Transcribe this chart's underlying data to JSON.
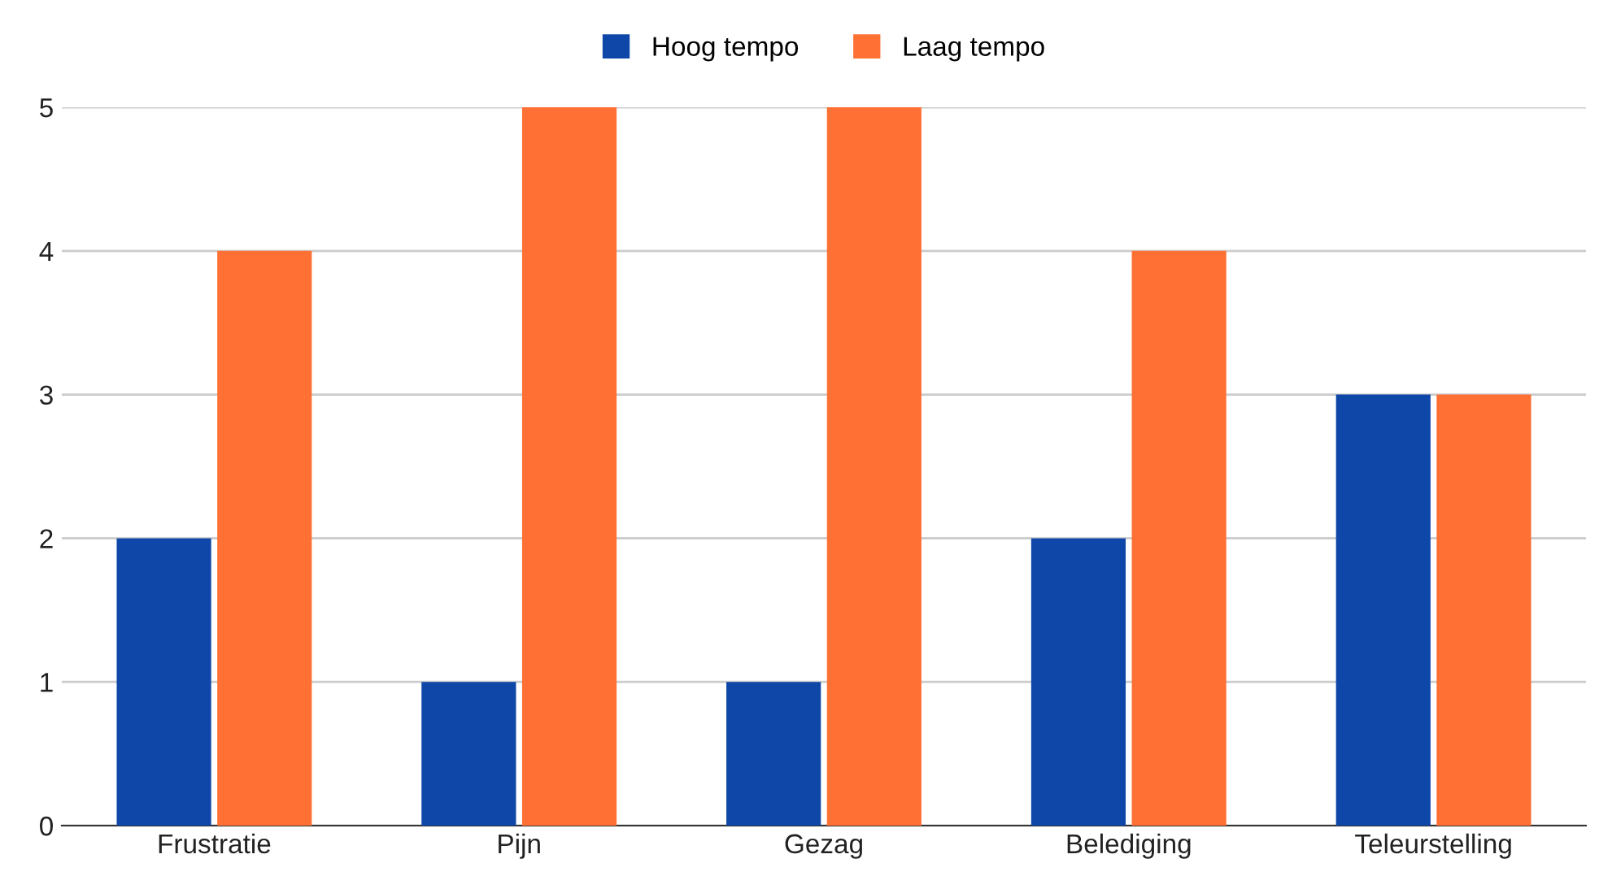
{
  "chart_data": {
    "type": "bar",
    "categories": [
      "Frustratie",
      "Pijn",
      "Gezag",
      "Belediging",
      "Teleurstelling"
    ],
    "series": [
      {
        "name": "Hoog tempo",
        "color": "#0e47a8",
        "values": [
          2,
          1,
          1,
          2,
          3
        ]
      },
      {
        "name": "Laag tempo",
        "color": "#ff7034",
        "values": [
          4,
          5,
          5,
          4,
          3
        ]
      }
    ],
    "ylim": [
      0,
      5
    ],
    "yticks": [
      0,
      1,
      2,
      3,
      4,
      5
    ],
    "grid": "y",
    "legend": "top"
  }
}
